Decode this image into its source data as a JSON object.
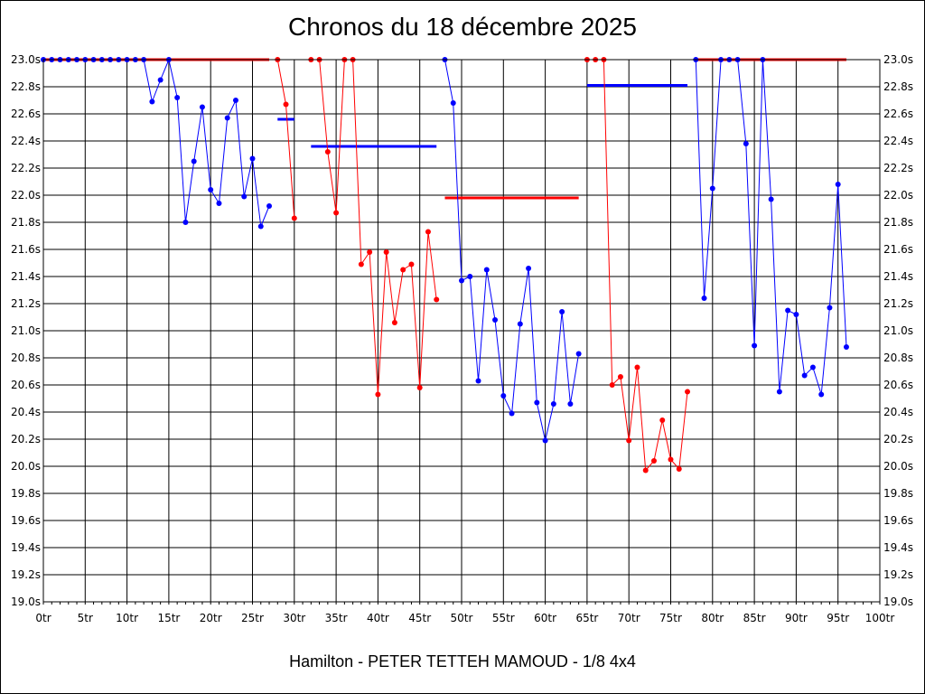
{
  "chart_data": {
    "type": "line",
    "title": "Chronos du 18 décembre 2025",
    "subtitle": "Hamilton - PETER TETTEH MAMOUD - 1/8 4x4",
    "xlim": [
      0,
      100
    ],
    "ylim": [
      19.0,
      23.0
    ],
    "x_ticks": [
      0,
      5,
      10,
      15,
      20,
      25,
      30,
      35,
      40,
      45,
      50,
      55,
      60,
      65,
      70,
      75,
      80,
      85,
      90,
      95,
      100
    ],
    "x_tick_labels": [
      "0tr",
      "5tr",
      "10tr",
      "15tr",
      "20tr",
      "25tr",
      "30tr",
      "35tr",
      "40tr",
      "45tr",
      "50tr",
      "55tr",
      "60tr",
      "65tr",
      "70tr",
      "75tr",
      "80tr",
      "85tr",
      "90tr",
      "95tr",
      "100tr"
    ],
    "y_ticks": [
      19.0,
      19.2,
      19.4,
      19.6,
      19.8,
      20.0,
      20.2,
      20.4,
      20.6,
      20.8,
      21.0,
      21.2,
      21.4,
      21.6,
      21.8,
      22.0,
      22.2,
      22.4,
      22.6,
      22.8,
      23.0
    ],
    "y_tick_labels": [
      "19.0s",
      "19.2s",
      "19.4s",
      "19.6s",
      "19.8s",
      "20.0s",
      "20.2s",
      "20.4s",
      "20.6s",
      "20.8s",
      "21.0s",
      "21.2s",
      "21.4s",
      "21.6s",
      "21.8s",
      "22.0s",
      "22.2s",
      "22.4s",
      "22.6s",
      "22.8s",
      "23.0s"
    ],
    "grid": true,
    "series": [
      {
        "color": "#0000ff",
        "segments": [
          [
            [
              0,
              23.0
            ],
            [
              1,
              23.0
            ],
            [
              2,
              23.0
            ],
            [
              3,
              23.0
            ],
            [
              4,
              23.0
            ],
            [
              5,
              23.0
            ],
            [
              6,
              23.0
            ],
            [
              7,
              23.0
            ],
            [
              8,
              23.0
            ],
            [
              9,
              23.0
            ],
            [
              10,
              23.0
            ],
            [
              11,
              23.0
            ],
            [
              12,
              23.0
            ],
            [
              13,
              22.69
            ],
            [
              14,
              22.85
            ],
            [
              15,
              23.0
            ],
            [
              16,
              22.72
            ],
            [
              17,
              21.8
            ],
            [
              18,
              22.25
            ],
            [
              19,
              22.65
            ],
            [
              20,
              22.04
            ],
            [
              21,
              21.94
            ],
            [
              22,
              22.57
            ],
            [
              23,
              22.7
            ],
            [
              24,
              21.99
            ],
            [
              25,
              22.27
            ],
            [
              26,
              21.77
            ],
            [
              27,
              21.92
            ]
          ],
          [
            [
              48,
              23.0
            ],
            [
              49,
              22.68
            ],
            [
              50,
              21.37
            ],
            [
              51,
              21.4
            ],
            [
              52,
              20.63
            ],
            [
              53,
              21.45
            ],
            [
              54,
              21.08
            ],
            [
              55,
              20.52
            ],
            [
              56,
              20.39
            ],
            [
              57,
              21.05
            ],
            [
              58,
              21.46
            ],
            [
              59,
              20.47
            ],
            [
              60,
              20.19
            ],
            [
              61,
              20.46
            ],
            [
              62,
              21.14
            ],
            [
              63,
              20.46
            ],
            [
              64,
              20.83
            ]
          ],
          [
            [
              78,
              23.0
            ],
            [
              79,
              21.24
            ],
            [
              80,
              22.05
            ],
            [
              81,
              23.0
            ],
            [
              82,
              23.0
            ],
            [
              83,
              23.0
            ],
            [
              84,
              22.38
            ],
            [
              85,
              20.89
            ],
            [
              86,
              23.0
            ],
            [
              87,
              21.97
            ],
            [
              88,
              20.55
            ],
            [
              89,
              21.15
            ],
            [
              90,
              21.12
            ],
            [
              91,
              20.67
            ],
            [
              92,
              20.73
            ],
            [
              93,
              20.53
            ],
            [
              94,
              21.17
            ],
            [
              95,
              22.08
            ],
            [
              96,
              20.88
            ]
          ]
        ]
      },
      {
        "color": "#ff0000",
        "segments": [
          [
            [
              28,
              23.0
            ],
            [
              29,
              22.67
            ],
            [
              30,
              21.83
            ]
          ],
          [
            [
              32,
              23.0
            ],
            [
              33,
              23.0
            ],
            [
              34,
              22.32
            ],
            [
              35,
              21.87
            ],
            [
              36,
              23.0
            ],
            [
              37,
              23.0
            ],
            [
              38,
              21.49
            ],
            [
              39,
              21.58
            ],
            [
              40,
              20.53
            ],
            [
              41,
              21.58
            ],
            [
              42,
              21.06
            ],
            [
              43,
              21.45
            ],
            [
              44,
              21.49
            ],
            [
              45,
              20.58
            ],
            [
              46,
              21.73
            ],
            [
              47,
              21.23
            ]
          ],
          [
            [
              65,
              23.0
            ],
            [
              66,
              23.0
            ],
            [
              67,
              23.0
            ],
            [
              68,
              20.6
            ],
            [
              69,
              20.66
            ],
            [
              70,
              20.19
            ],
            [
              71,
              20.73
            ],
            [
              72,
              19.97
            ],
            [
              73,
              20.04
            ],
            [
              74,
              20.34
            ],
            [
              75,
              20.05
            ],
            [
              76,
              19.98
            ],
            [
              77,
              20.55
            ]
          ]
        ]
      }
    ],
    "reference_lines": [
      {
        "color": "#ff0000",
        "x": [
          0,
          27
        ],
        "y": 23.0
      },
      {
        "color": "#0000ff",
        "x": [
          28,
          30
        ],
        "y": 22.56
      },
      {
        "color": "#0000ff",
        "x": [
          32,
          47
        ],
        "y": 22.36
      },
      {
        "color": "#ff0000",
        "x": [
          48,
          64
        ],
        "y": 21.98
      },
      {
        "color": "#0000ff",
        "x": [
          65,
          77
        ],
        "y": 22.81
      },
      {
        "color": "#ff0000",
        "x": [
          78,
          96
        ],
        "y": 23.0
      }
    ]
  }
}
